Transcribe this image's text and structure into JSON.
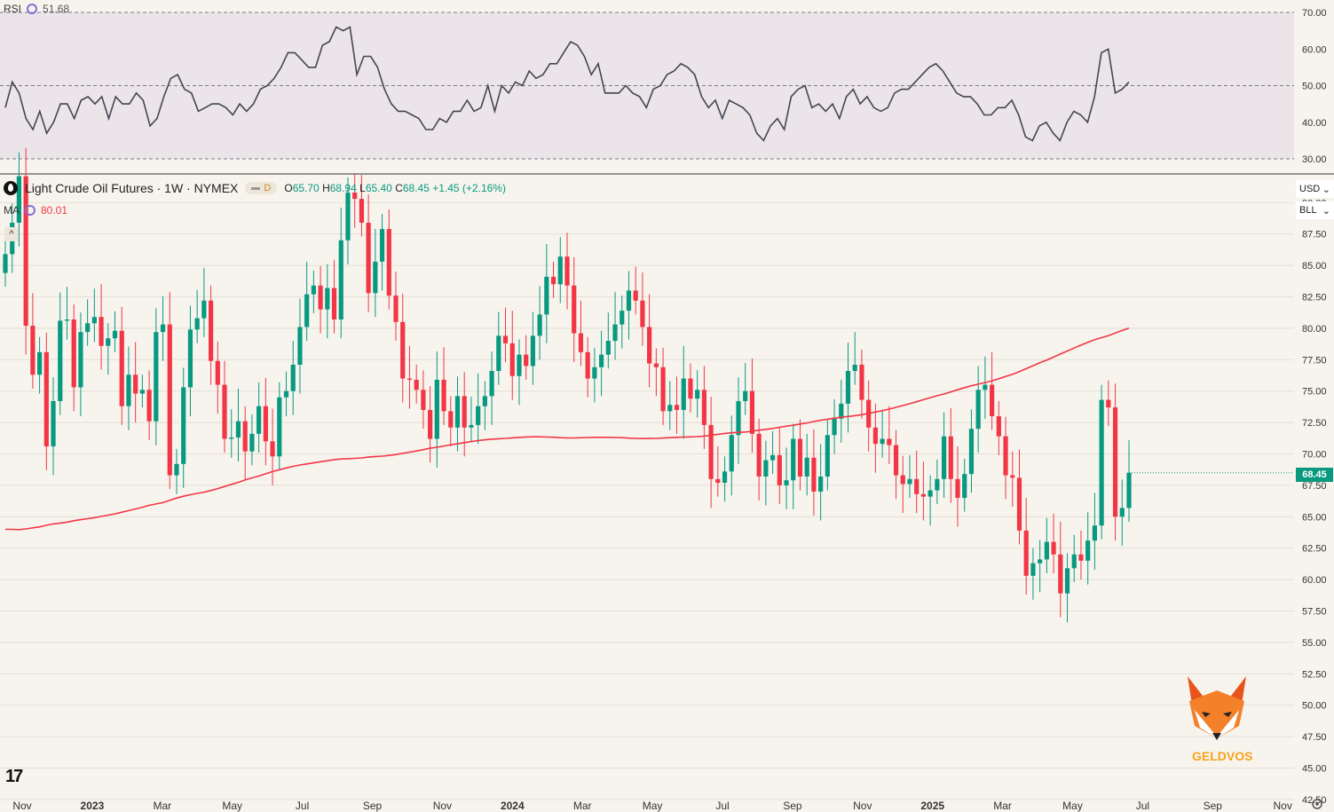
{
  "rsi_header": {
    "label": "RSI",
    "value": "51.68"
  },
  "main_header": {
    "symbol": "Light Crude Oil Futures · 1W · NYMEX",
    "badge": "D",
    "o_label": "O",
    "o": "65.70",
    "h_label": "H",
    "h": "68.94",
    "l_label": "L",
    "l": "65.40",
    "c_label": "C",
    "c": "68.45",
    "change": "+1.45 (+2.16%)"
  },
  "ma_header": {
    "label": "MA",
    "value": "80.01"
  },
  "currency_select": "USD",
  "unit_select": "BLL",
  "last_price": "68.45",
  "watermark": "GELDVOS",
  "colors": {
    "up": "#089981",
    "down": "#f23645",
    "ma": "#f23645",
    "rsi": "#434651",
    "rsi_band": "#ebe5ea",
    "background": "#f7f4ee"
  },
  "chart_data": [
    {
      "type": "line",
      "name": "RSI",
      "yticks": [
        "30.00",
        "40.00",
        "50.00",
        "60.00",
        "70.00"
      ],
      "ylim": [
        30,
        70
      ],
      "bands": [
        30,
        50,
        70
      ],
      "values": [
        44,
        51,
        48,
        41,
        38,
        43,
        37,
        40,
        45,
        45,
        41,
        46,
        47,
        45,
        47,
        41,
        47,
        45,
        45,
        48,
        46,
        39,
        41,
        47,
        52,
        53,
        49,
        48,
        43,
        44,
        45,
        45,
        44,
        42,
        45,
        43,
        45,
        49,
        50,
        52,
        55,
        59,
        59,
        57,
        55,
        55,
        61,
        62,
        66,
        65,
        66,
        53,
        58,
        58,
        55,
        49,
        45,
        43,
        43,
        42,
        41,
        38,
        38,
        41,
        40,
        43,
        43,
        46,
        43,
        44,
        50,
        43,
        50,
        48,
        51,
        50,
        54,
        52,
        53,
        56,
        56,
        59,
        62,
        61,
        58,
        53,
        56,
        48,
        48,
        48,
        50,
        48,
        47,
        44,
        49,
        50,
        53,
        54,
        56,
        55,
        53,
        47,
        44,
        46,
        41,
        46,
        45,
        44,
        42,
        37,
        35,
        39,
        41,
        38,
        47,
        49,
        50,
        44,
        45,
        43,
        45,
        41,
        47,
        49,
        45,
        47,
        44,
        43,
        44,
        48,
        49,
        49,
        51,
        53,
        55,
        56,
        54,
        51,
        48,
        47,
        47,
        45,
        42,
        42,
        44,
        44,
        46,
        42,
        36,
        35,
        39,
        40,
        37,
        35,
        40,
        43,
        42,
        40,
        47,
        59,
        60,
        48,
        49,
        51
      ]
    },
    {
      "type": "candlestick",
      "name": "Light Crude Oil Futures",
      "x_labels": [
        "Nov",
        "2023",
        "Mar",
        "May",
        "Jul",
        "Sep",
        "Nov",
        "2024",
        "Mar",
        "May",
        "Jul",
        "Sep",
        "Nov",
        "2025",
        "Mar",
        "May",
        "Jul",
        "Sep",
        "Nov"
      ],
      "yticks": [
        "42.50",
        "45.00",
        "47.50",
        "50.00",
        "52.50",
        "55.00",
        "57.50",
        "60.00",
        "62.50",
        "65.00",
        "67.50",
        "70.00",
        "72.50",
        "75.00",
        "77.50",
        "80.00",
        "82.50",
        "85.00",
        "87.50",
        "90.00"
      ],
      "ylim": [
        41.5,
        92.0
      ],
      "closes": [
        85.9,
        88.4,
        92.1,
        80.2,
        76.3,
        78.1,
        70.6,
        74.2,
        80.6,
        80.7,
        75.3,
        79.7,
        80.4,
        80.9,
        78.6,
        79.2,
        79.8,
        73.8,
        76.3,
        74.8,
        75.1,
        72.6,
        79.7,
        80.3,
        68.3,
        69.2,
        75.3,
        79.9,
        80.8,
        82.2,
        77.4,
        75.5,
        71.2,
        71.3,
        72.6,
        70.2,
        71.6,
        73.8,
        71.0,
        69.8,
        74.5,
        75.0,
        77.1,
        80.1,
        82.7,
        83.4,
        81.5,
        83.2,
        80.7,
        87.0,
        90.8,
        90.3,
        88.4,
        82.8,
        85.3,
        87.9,
        82.6,
        80.5,
        76.0,
        75.9,
        75.1,
        73.5,
        71.2,
        75.9,
        73.4,
        72.1,
        74.6,
        72.1,
        72.3,
        73.8,
        74.6,
        76.6,
        79.4,
        78.8,
        76.2,
        77.9,
        77.0,
        79.4,
        81.1,
        84.1,
        83.5,
        85.7,
        83.4,
        79.6,
        78.1,
        76.0,
        76.9,
        77.9,
        79.0,
        80.3,
        81.4,
        83.0,
        82.2,
        80.1,
        77.2,
        76.9,
        73.4,
        73.9,
        73.5,
        76.0,
        74.4,
        75.1,
        72.3,
        68.0,
        67.7,
        68.6,
        71.5,
        74.2,
        75.0,
        71.6,
        68.2,
        69.5,
        69.9,
        67.5,
        67.9,
        71.2,
        68.2,
        69.7,
        67.0,
        68.2,
        71.5,
        72.8,
        74.0,
        76.6,
        77.1,
        74.3,
        72.1,
        70.8,
        71.2,
        70.7,
        68.3,
        67.6,
        68.0,
        66.8,
        66.6,
        67.1,
        68.0,
        71.4,
        68.0,
        66.5,
        68.4,
        72.0,
        75.1,
        75.5,
        73.0,
        71.4,
        68.3,
        68.1,
        63.9,
        60.3,
        61.3,
        61.6,
        63.0,
        62.0,
        58.9,
        60.9,
        62.0,
        61.5,
        63.1,
        64.3,
        74.3,
        73.7,
        65.0,
        65.7,
        68.5
      ],
      "ma": {
        "name": "MA",
        "last": 80.01
      }
    }
  ]
}
